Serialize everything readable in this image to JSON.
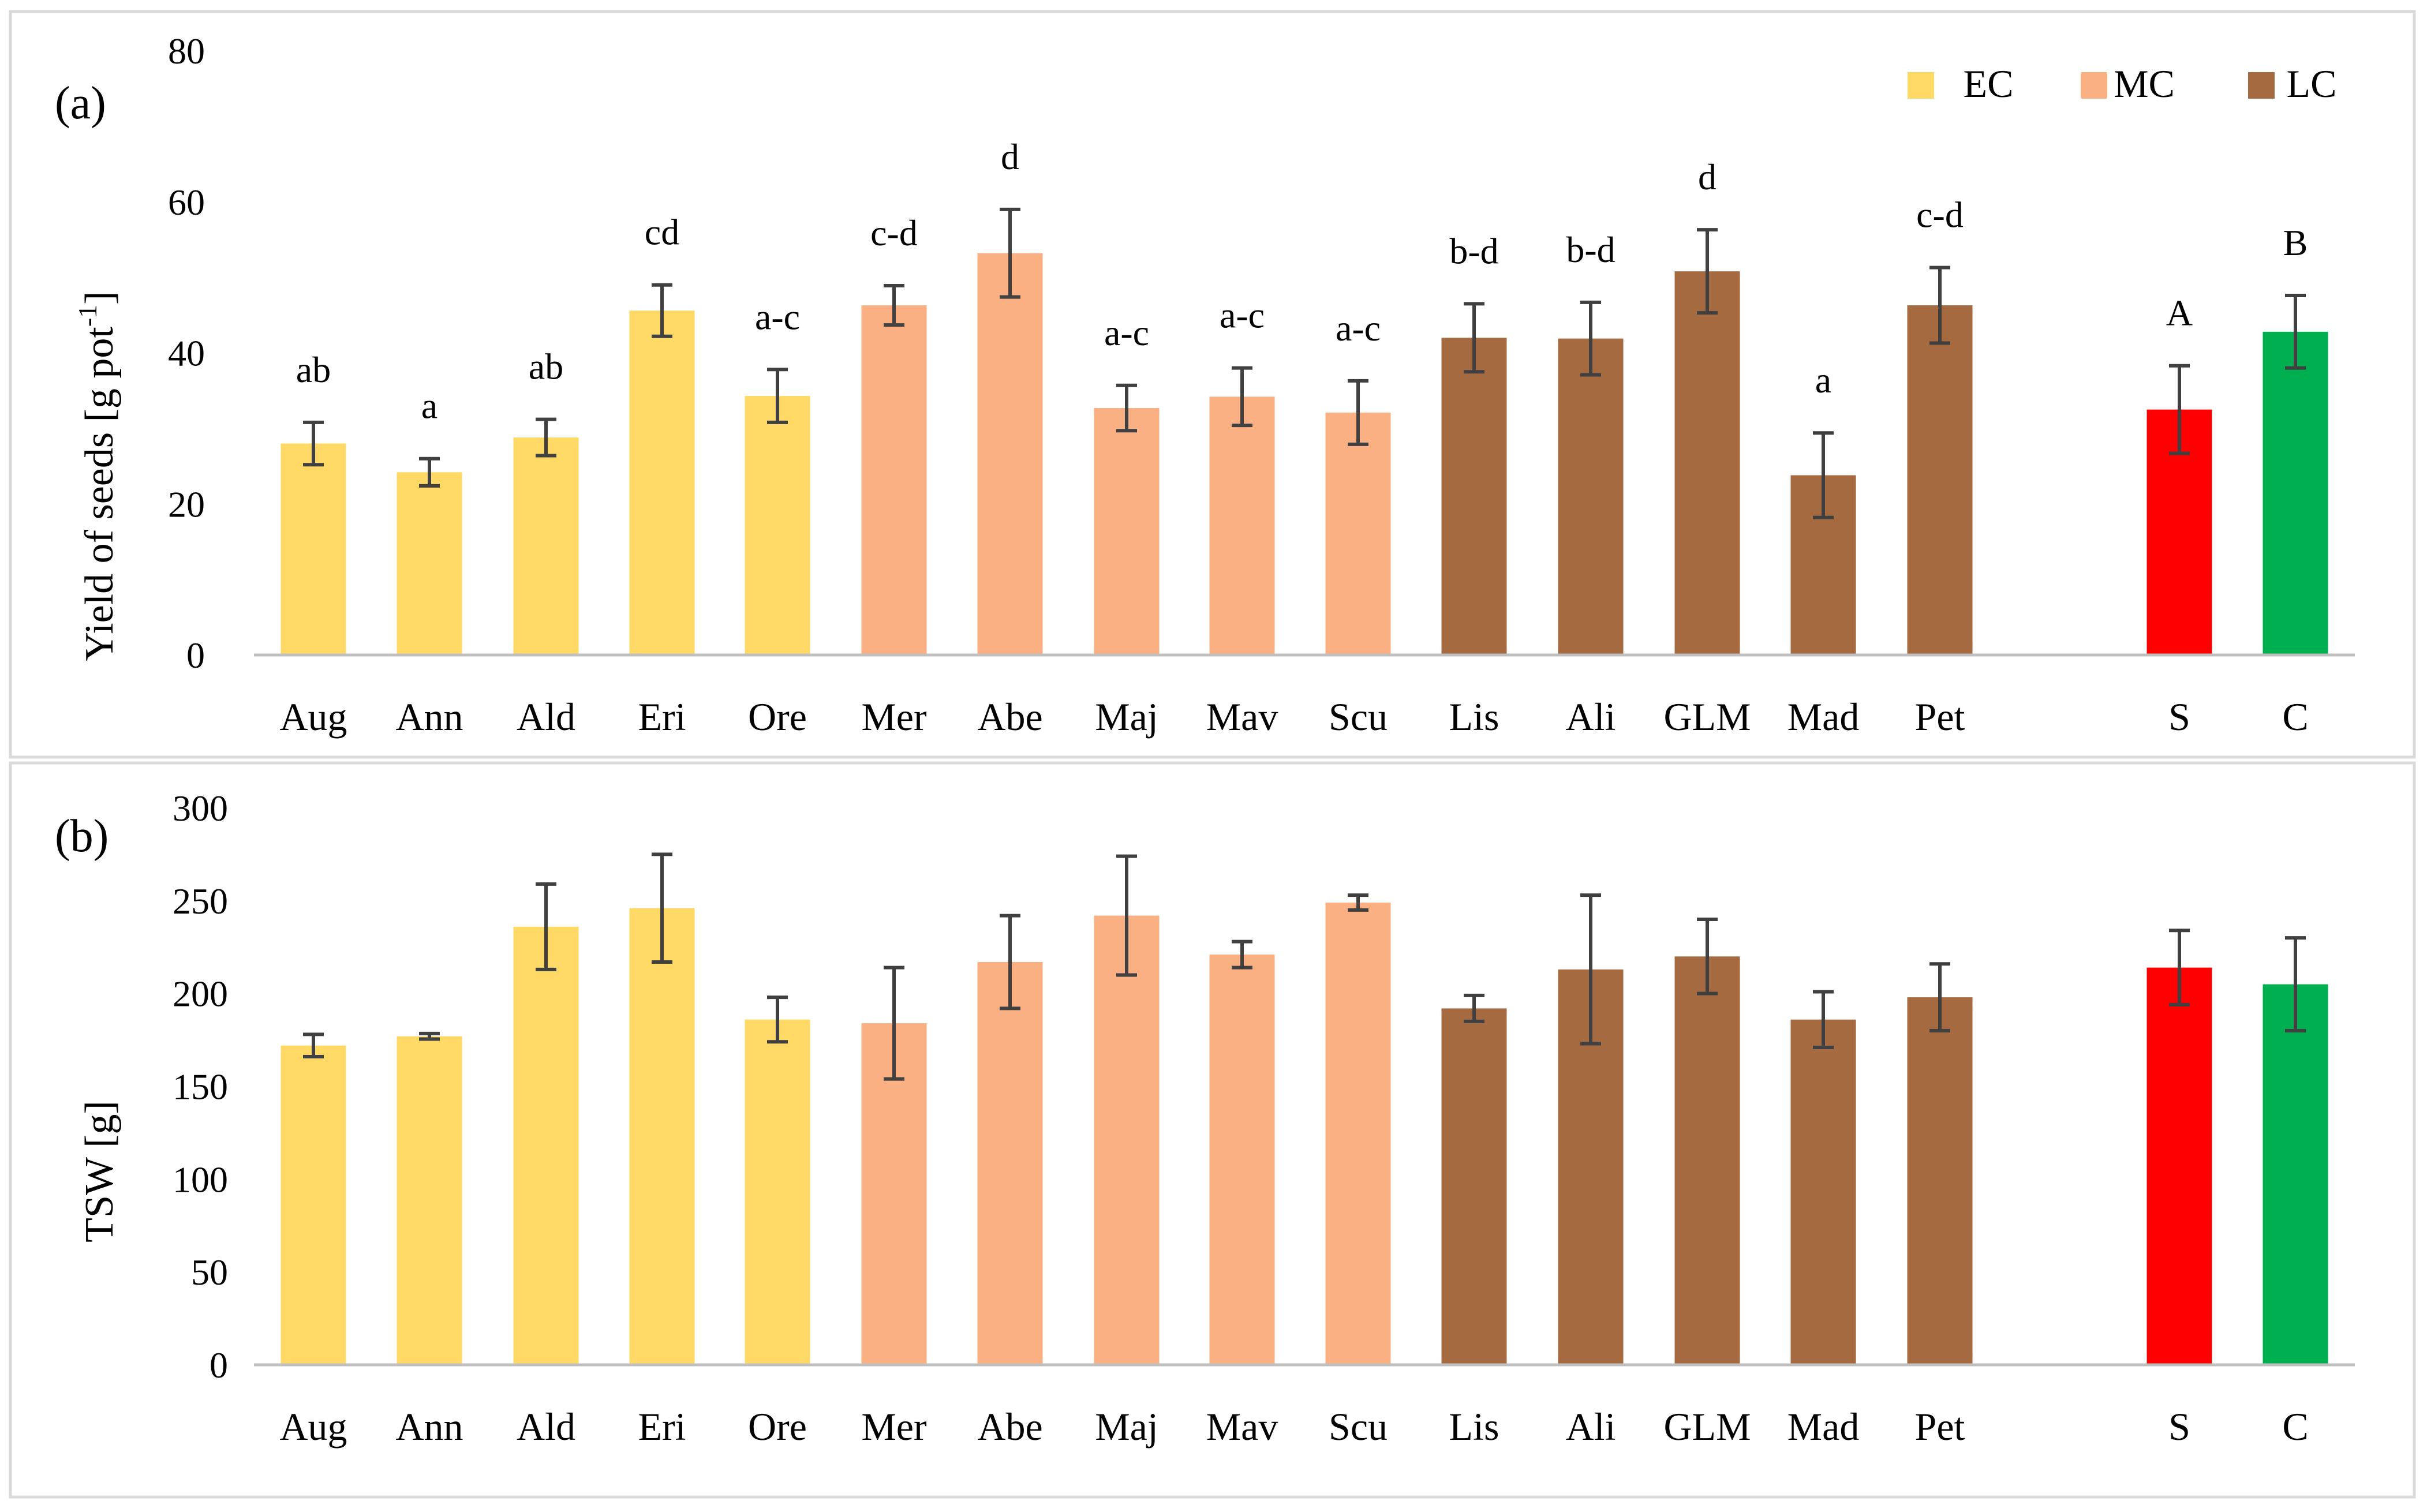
{
  "colors": {
    "EC": "#FFD966",
    "MC": "#FBB083",
    "LC": "#A56A40",
    "S": "#FF0000",
    "C": "#00B050",
    "error_bar": "#404040",
    "axis": "#BFBFBF",
    "frame": "#D9D9D9"
  },
  "chart_data": [
    {
      "id": "a",
      "type": "bar",
      "panel_label": "(a)",
      "ylabel_main": "Yield of seeds [g pot",
      "ylabel_sup": "-1",
      "ylabel_end": "]",
      "ylim": [
        0,
        80
      ],
      "yticks": [
        0,
        20,
        40,
        60,
        80
      ],
      "grid": false,
      "legend": {
        "placement": "top-right",
        "entries": [
          {
            "label": "EC",
            "group": "EC"
          },
          {
            "label": "MC",
            "group": "MC"
          },
          {
            "label": "LC",
            "group": "LC"
          }
        ]
      },
      "categories": [
        "Aug",
        "Ann",
        "Ald",
        "Eri",
        "Ore",
        "Mer",
        "Abe",
        "Maj",
        "Mav",
        "Scu",
        "Lis",
        "Ali",
        "GLM",
        "Mad",
        "Pet",
        "S",
        "C"
      ],
      "groups": [
        "EC",
        "EC",
        "EC",
        "EC",
        "EC",
        "MC",
        "MC",
        "MC",
        "MC",
        "MC",
        "LC",
        "LC",
        "LC",
        "LC",
        "LC",
        "S",
        "C"
      ],
      "values": [
        28,
        24.2,
        28.8,
        45.6,
        34.3,
        46.3,
        53.2,
        32.7,
        34.2,
        32.1,
        42,
        41.9,
        50.8,
        23.8,
        46.3,
        32.5,
        42.8
      ],
      "errors": [
        2.8,
        1.8,
        2.4,
        3.4,
        3.5,
        2.6,
        5.8,
        3.0,
        3.8,
        4.2,
        4.5,
        4.8,
        5.5,
        5.6,
        5.0,
        5.8,
        4.8
      ],
      "significance": [
        "ab",
        "a",
        "ab",
        "cd",
        "a-c",
        "c-d",
        "d",
        "a-c",
        "a-c",
        "a-c",
        "b-d",
        "b-d",
        "d",
        "a",
        "c-d",
        "A",
        "B"
      ]
    },
    {
      "id": "b",
      "type": "bar",
      "panel_label": "(b)",
      "ylabel_main": "TSW [g]",
      "ylim": [
        0,
        300
      ],
      "yticks": [
        0,
        50,
        100,
        150,
        200,
        250,
        300
      ],
      "grid": false,
      "categories": [
        "Aug",
        "Ann",
        "Ald",
        "Eri",
        "Ore",
        "Mer",
        "Abe",
        "Maj",
        "Mav",
        "Scu",
        "Lis",
        "Ali",
        "GLM",
        "Mad",
        "Pet",
        "S",
        "C"
      ],
      "groups": [
        "EC",
        "EC",
        "EC",
        "EC",
        "EC",
        "MC",
        "MC",
        "MC",
        "MC",
        "MC",
        "LC",
        "LC",
        "LC",
        "LC",
        "LC",
        "S",
        "C"
      ],
      "values": [
        172,
        177,
        236,
        246,
        186,
        184,
        217,
        242,
        221,
        249,
        192,
        213,
        220,
        186,
        198,
        214,
        205
      ],
      "errors": [
        6,
        1.5,
        23,
        29,
        12,
        30,
        25,
        32,
        7,
        4,
        7,
        40,
        20,
        15,
        18,
        20,
        25
      ]
    }
  ]
}
